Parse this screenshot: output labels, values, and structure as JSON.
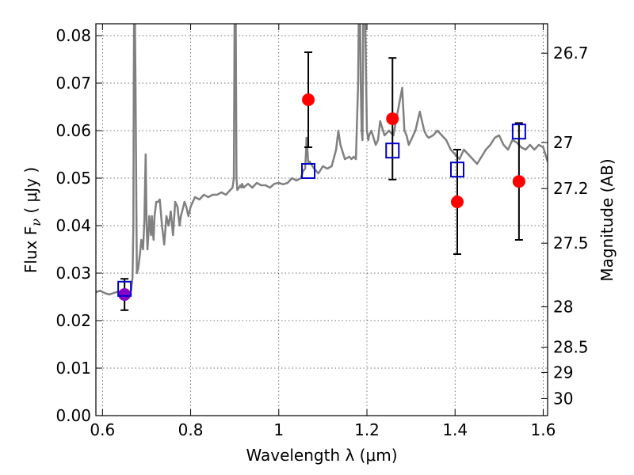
{
  "chart_data": {
    "type": "scatter",
    "xlabel": "Wavelength  λ (μm)",
    "ylabel": "Flux  F",
    "ylabel_sub": "ν",
    "ylabel_unit": " ( μJy )",
    "ylabel_right": "Magnitude (AB)",
    "xlim": [
      0.585,
      1.61
    ],
    "ylim": [
      0.0,
      0.0825
    ],
    "grid": true,
    "x_ticks": [
      {
        "value": 0.6,
        "label": "0.6"
      },
      {
        "value": 0.8,
        "label": "0.8"
      },
      {
        "value": 1.0,
        "label": "1"
      },
      {
        "value": 1.2,
        "label": "1.2"
      },
      {
        "value": 1.4,
        "label": "1.4"
      },
      {
        "value": 1.6,
        "label": "1.6"
      }
    ],
    "y_ticks": [
      {
        "value": 0.0,
        "label": "0.00"
      },
      {
        "value": 0.01,
        "label": "0.01"
      },
      {
        "value": 0.02,
        "label": "0.02"
      },
      {
        "value": 0.03,
        "label": "0.03"
      },
      {
        "value": 0.04,
        "label": "0.04"
      },
      {
        "value": 0.05,
        "label": "0.05"
      },
      {
        "value": 0.06,
        "label": "0.06"
      },
      {
        "value": 0.07,
        "label": "0.07"
      },
      {
        "value": 0.08,
        "label": "0.08"
      }
    ],
    "right_ticks": [
      {
        "flux": 0.0763,
        "label": "26.7"
      },
      {
        "flux": 0.0575,
        "label": "27"
      },
      {
        "flux": 0.0478,
        "label": "27.2"
      },
      {
        "flux": 0.0363,
        "label": "27.5"
      },
      {
        "flux": 0.0229,
        "label": "28"
      },
      {
        "flux": 0.0144,
        "label": "28.5"
      },
      {
        "flux": 0.0091,
        "label": "29"
      },
      {
        "flux": 0.0036,
        "label": "30"
      }
    ],
    "series": [
      {
        "kind": "line",
        "color": "#808080",
        "x": [
          0.585,
          0.595,
          0.605,
          0.615,
          0.625,
          0.635,
          0.645,
          0.652,
          0.66,
          0.665,
          0.668,
          0.67,
          0.671,
          0.672,
          0.673,
          0.675,
          0.678,
          0.681,
          0.685,
          0.688,
          0.692,
          0.695,
          0.698,
          0.7,
          0.702,
          0.704,
          0.706,
          0.708,
          0.71,
          0.712,
          0.714,
          0.716,
          0.718,
          0.722,
          0.726,
          0.73,
          0.735,
          0.74,
          0.745,
          0.75,
          0.755,
          0.76,
          0.765,
          0.77,
          0.775,
          0.778,
          0.782,
          0.786,
          0.79,
          0.795,
          0.8,
          0.805,
          0.81,
          0.82,
          0.83,
          0.84,
          0.85,
          0.86,
          0.87,
          0.88,
          0.89,
          0.895,
          0.898,
          0.9,
          0.902,
          0.904,
          0.906,
          0.908,
          0.91,
          0.913,
          0.915,
          0.917,
          0.92,
          0.93,
          0.94,
          0.95,
          0.96,
          0.97,
          0.98,
          0.99,
          1.0,
          1.01,
          1.02,
          1.03,
          1.04,
          1.05,
          1.055,
          1.06,
          1.062,
          1.063,
          1.065,
          1.067,
          1.07,
          1.08,
          1.09,
          1.1,
          1.11,
          1.12,
          1.13,
          1.135,
          1.14,
          1.15,
          1.16,
          1.165,
          1.17,
          1.175,
          1.18,
          1.182,
          1.184,
          1.186,
          1.188,
          1.19,
          1.192,
          1.195,
          1.2,
          1.203,
          1.205,
          1.21,
          1.22,
          1.225,
          1.23,
          1.24,
          1.25,
          1.26,
          1.27,
          1.28,
          1.285,
          1.29,
          1.295,
          1.3,
          1.31,
          1.32,
          1.325,
          1.33,
          1.335,
          1.34,
          1.35,
          1.36,
          1.37,
          1.38,
          1.39,
          1.4,
          1.41,
          1.42,
          1.43,
          1.44,
          1.45,
          1.46,
          1.47,
          1.48,
          1.49,
          1.5,
          1.51,
          1.52,
          1.53,
          1.54,
          1.55,
          1.56,
          1.57,
          1.58,
          1.59,
          1.6,
          1.605,
          1.61
        ],
        "y": [
          0.026,
          0.0263,
          0.0258,
          0.0255,
          0.0258,
          0.0261,
          0.0258,
          0.0253,
          0.0255,
          0.0265,
          0.029,
          0.04,
          0.07,
          0.09,
          0.09,
          0.07,
          0.03,
          0.031,
          0.034,
          0.037,
          0.035,
          0.041,
          0.055,
          0.04,
          0.035,
          0.038,
          0.042,
          0.04,
          0.038,
          0.042,
          0.039,
          0.037,
          0.042,
          0.045,
          0.045,
          0.0455,
          0.04,
          0.036,
          0.042,
          0.04,
          0.043,
          0.038,
          0.045,
          0.044,
          0.04,
          0.042,
          0.0435,
          0.045,
          0.044,
          0.042,
          0.044,
          0.045,
          0.046,
          0.0455,
          0.0465,
          0.046,
          0.0465,
          0.0465,
          0.047,
          0.0465,
          0.0475,
          0.048,
          0.05,
          0.09,
          0.09,
          0.05,
          0.0475,
          0.0478,
          0.048,
          0.0485,
          0.048,
          0.0488,
          0.048,
          0.0488,
          0.048,
          0.049,
          0.0485,
          0.0485,
          0.048,
          0.0488,
          0.049,
          0.0487,
          0.049,
          0.05,
          0.0495,
          0.05,
          0.0515,
          0.052,
          0.056,
          0.0585,
          0.056,
          0.053,
          0.0535,
          0.052,
          0.051,
          0.0525,
          0.052,
          0.0525,
          0.056,
          0.06,
          0.057,
          0.054,
          0.0545,
          0.054,
          0.0545,
          0.054,
          0.07,
          0.09,
          0.09,
          0.07,
          0.06,
          0.058,
          0.09,
          0.09,
          0.06,
          0.058,
          0.059,
          0.06,
          0.057,
          0.058,
          0.062,
          0.059,
          0.06,
          0.059,
          0.064,
          0.069,
          0.06,
          0.059,
          0.057,
          0.058,
          0.06,
          0.064,
          0.062,
          0.06,
          0.059,
          0.0585,
          0.059,
          0.06,
          0.059,
          0.058,
          0.056,
          0.055,
          0.054,
          0.056,
          0.055,
          0.054,
          0.053,
          0.0545,
          0.056,
          0.057,
          0.0585,
          0.059,
          0.057,
          0.056,
          0.058,
          0.0575,
          0.0565,
          0.056,
          0.057,
          0.056,
          0.057,
          0.0565,
          0.055,
          0.0535
        ]
      },
      {
        "kind": "points",
        "color": "#ff0000",
        "marker": "circle",
        "points": [
          {
            "x": 1.067,
            "y": 0.0665,
            "err": 0.01
          },
          {
            "x": 1.258,
            "y": 0.0625,
            "err": 0.0128
          },
          {
            "x": 1.405,
            "y": 0.045,
            "err": 0.011
          },
          {
            "x": 1.545,
            "y": 0.0493,
            "err": 0.0123
          }
        ]
      },
      {
        "kind": "points",
        "color": "#8a00c8",
        "marker": "circle",
        "points": [
          {
            "x": 0.65,
            "y": 0.0255,
            "err": 0.0033
          }
        ]
      },
      {
        "kind": "points",
        "color": "#0000cc",
        "marker": "open-square",
        "points": [
          {
            "x": 0.65,
            "y": 0.0267
          },
          {
            "x": 1.067,
            "y": 0.0515
          },
          {
            "x": 1.258,
            "y": 0.0558
          },
          {
            "x": 1.405,
            "y": 0.0518
          },
          {
            "x": 1.545,
            "y": 0.0598
          }
        ]
      }
    ]
  }
}
